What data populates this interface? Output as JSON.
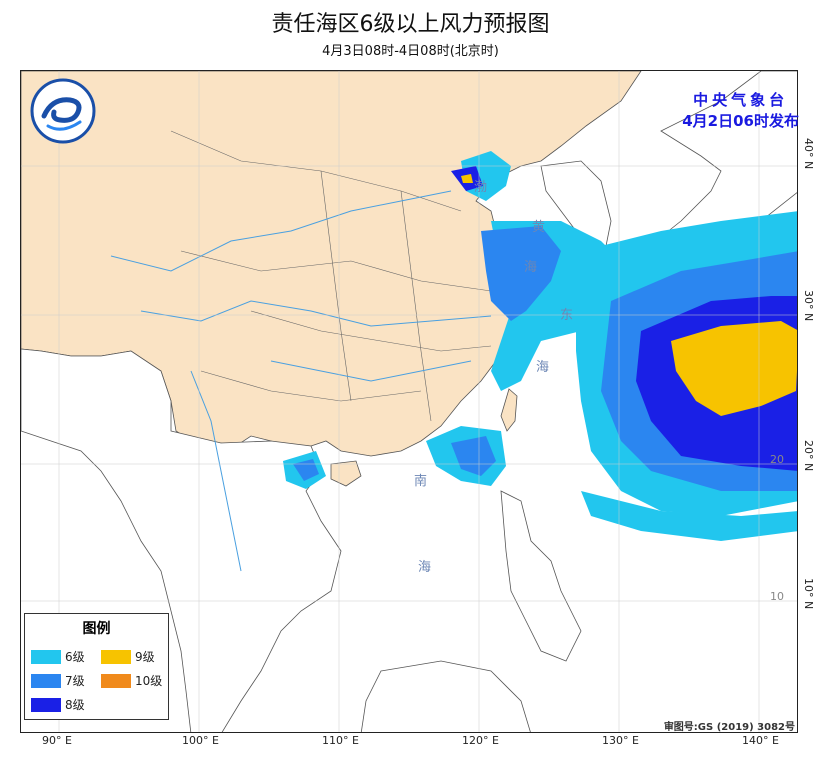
{
  "header": {
    "title": "责任海区6级以上风力预报图",
    "subtitle": "4月3日08时-4日08时(北京时)"
  },
  "issuer": {
    "line1": "中央气象台",
    "line2": "4月2日06时发布"
  },
  "approval": "审图号:GS (2019) 3082号",
  "legend": {
    "title": "图例",
    "items": [
      {
        "label": "6级",
        "color": "#22c6ee"
      },
      {
        "label": "9级",
        "color": "#f7c300"
      },
      {
        "label": "7级",
        "color": "#2b86f0"
      },
      {
        "label": "10级",
        "color": "#f08a1c"
      },
      {
        "label": "8级",
        "color": "#1a20e6"
      }
    ]
  },
  "axes": {
    "longitude_ticks": [
      "90° E",
      "100° E",
      "110° E",
      "120° E",
      "130° E",
      "140° E"
    ],
    "latitude_ticks": [
      "40° N",
      "30° N",
      "20° N",
      "10° N"
    ],
    "inner_labels": [
      "20",
      "10"
    ]
  },
  "sea_labels": [
    "渤",
    "海",
    "黄",
    "海",
    "东",
    "海",
    "南",
    "海"
  ],
  "colors": {
    "land": "#fae3c4",
    "sea": "#ffffff",
    "river": "#4aa0e0",
    "boundary": "#555555"
  }
}
